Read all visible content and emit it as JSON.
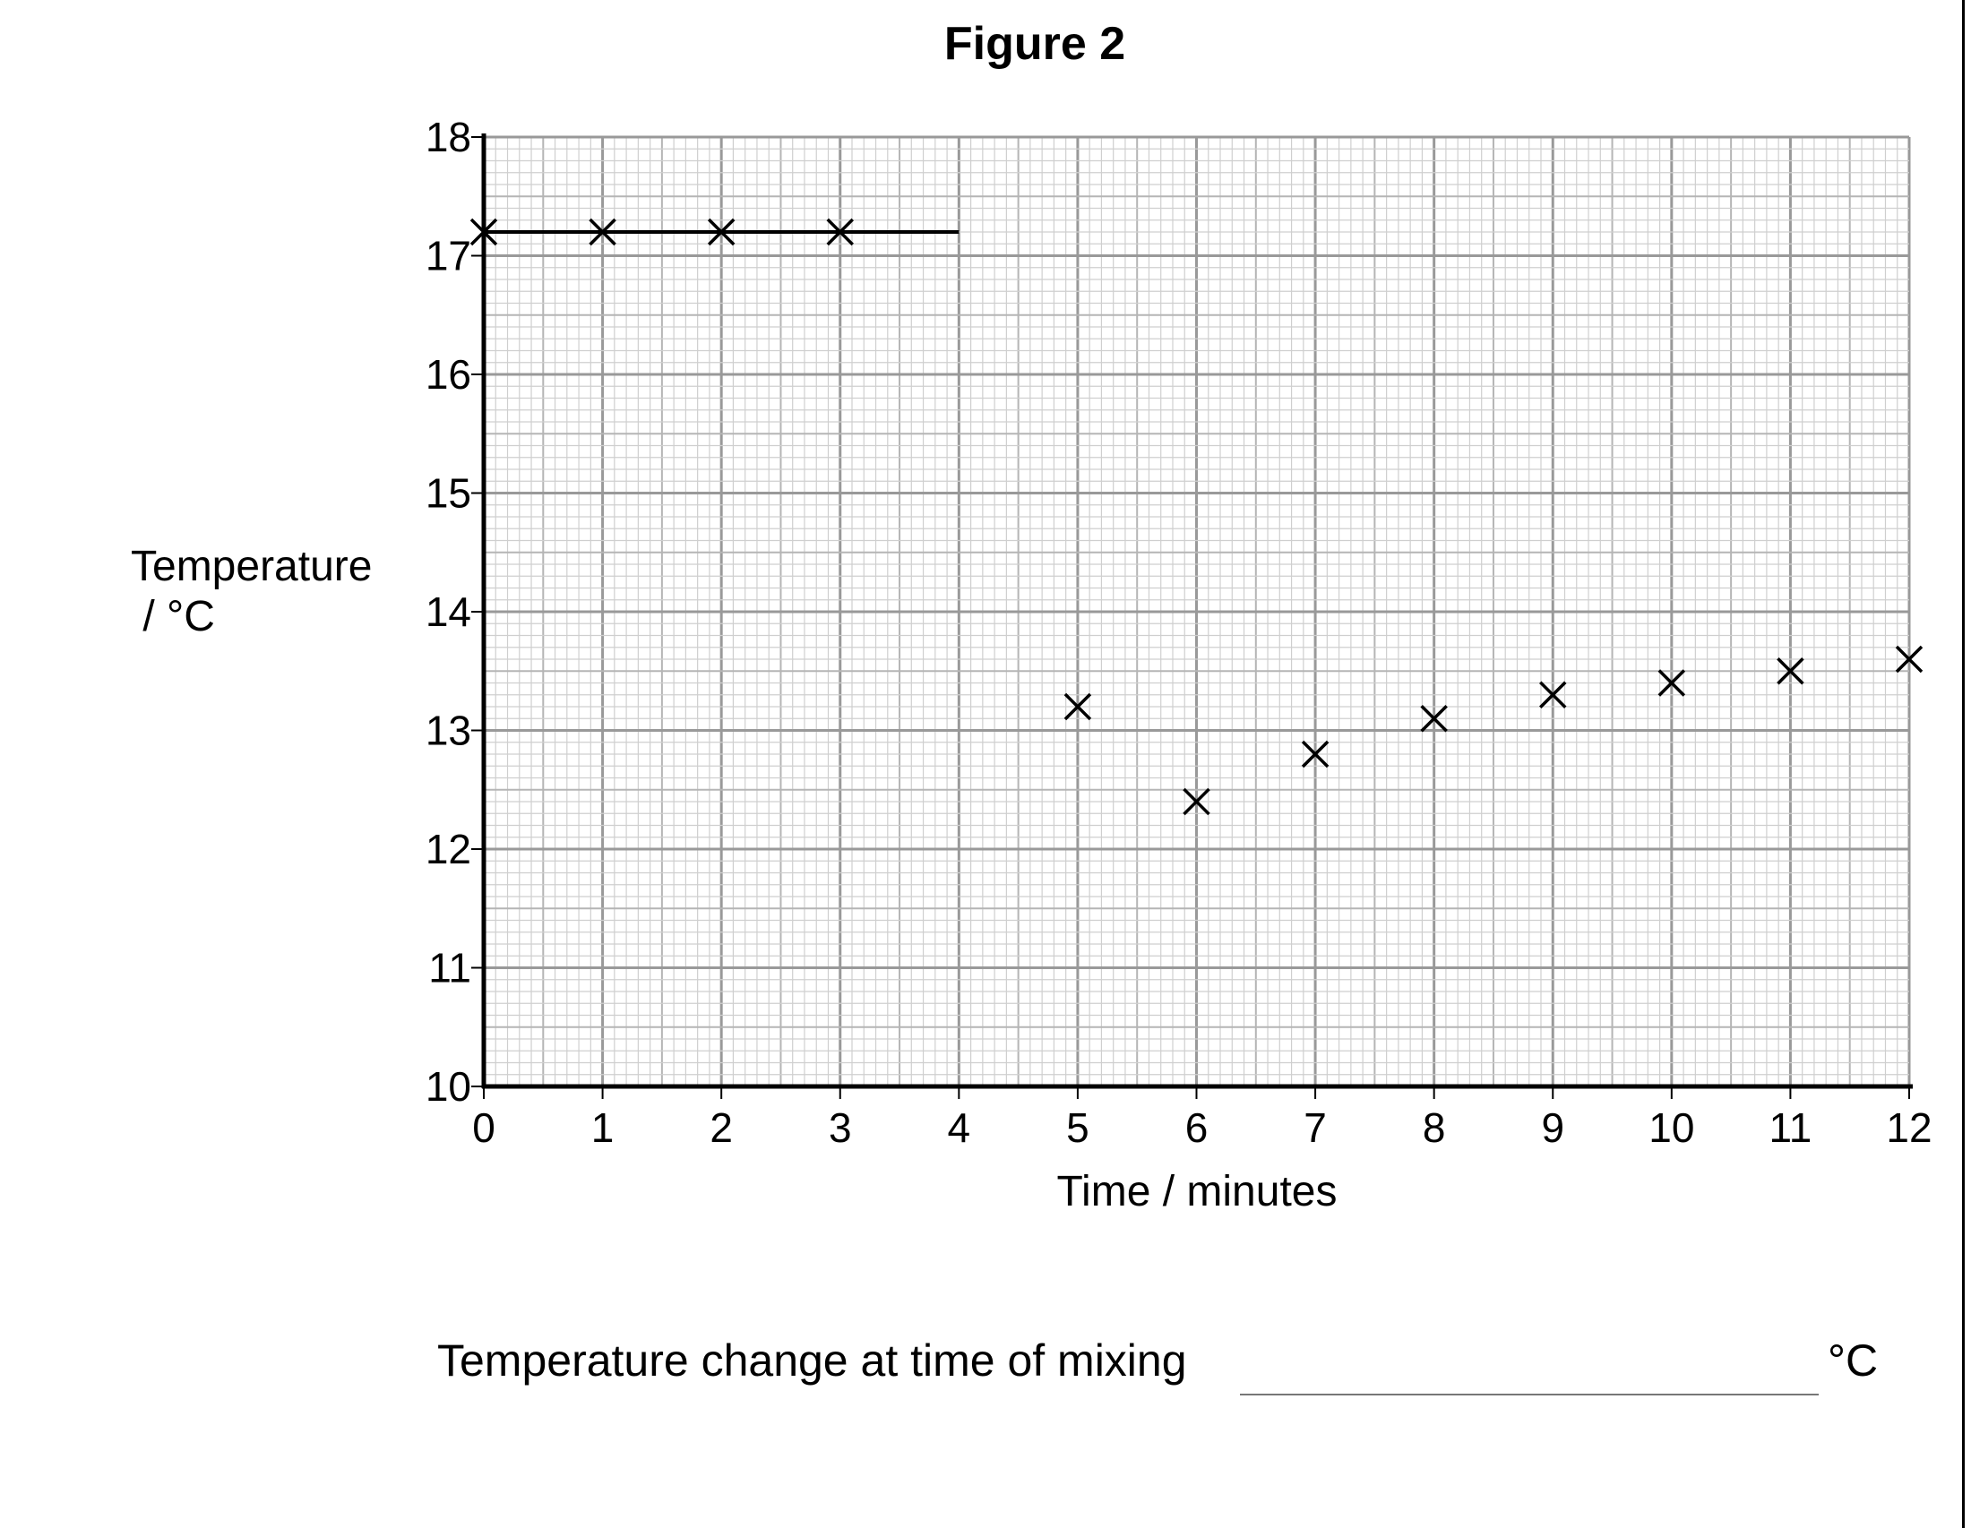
{
  "chart_data": {
    "type": "scatter",
    "title": "Figure 2",
    "xlabel": "Time / minutes",
    "ylabel": [
      "Temperature",
      " / °C"
    ],
    "xlim": [
      0,
      12
    ],
    "ylim": [
      10,
      18
    ],
    "x_ticks": [
      0,
      1,
      2,
      3,
      4,
      5,
      6,
      7,
      8,
      9,
      10,
      11,
      12
    ],
    "y_ticks": [
      10,
      11,
      12,
      13,
      14,
      15,
      16,
      17,
      18
    ],
    "grid": true,
    "points": [
      {
        "x": 0,
        "y": 17.2
      },
      {
        "x": 1,
        "y": 17.2
      },
      {
        "x": 2,
        "y": 17.2
      },
      {
        "x": 3,
        "y": 17.2
      },
      {
        "x": 5,
        "y": 13.2
      },
      {
        "x": 6,
        "y": 12.4
      },
      {
        "x": 7,
        "y": 12.8
      },
      {
        "x": 8,
        "y": 13.1
      },
      {
        "x": 9,
        "y": 13.3
      },
      {
        "x": 10,
        "y": 13.4
      },
      {
        "x": 11,
        "y": 13.5
      },
      {
        "x": 12,
        "y": 13.6
      }
    ],
    "line_segment": {
      "x": [
        0,
        4
      ],
      "y": [
        17.2,
        17.2
      ]
    }
  },
  "answer": {
    "label": "Temperature change at time of mixing",
    "unit": "°C"
  }
}
